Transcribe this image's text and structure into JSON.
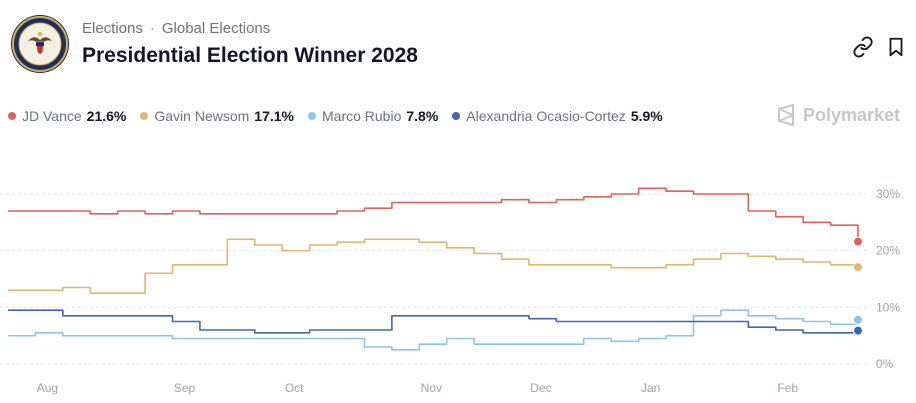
{
  "breadcrumb": {
    "item1": "Elections",
    "separator": "·",
    "item2": "Global Elections"
  },
  "market": {
    "title": "Presidential Election Winner 2028"
  },
  "icons": {
    "seal": "presidential-seal-icon",
    "link": "link-icon",
    "bookmark": "bookmark-icon",
    "brand": "polymarket-logo-icon"
  },
  "brand": {
    "name": "Polymarket"
  },
  "legend": [
    {
      "name": "JD Vance",
      "value": "21.6%",
      "color": "#e0625a"
    },
    {
      "name": "Gavin Newsom",
      "value": "17.1%",
      "color": "#dfb96b"
    },
    {
      "name": "Marco Rubio",
      "value": "7.8%",
      "color": "#8cc4ec"
    },
    {
      "name": "Alexandria Ocasio-Cortez",
      "value": "5.9%",
      "color": "#3e66b4"
    }
  ],
  "chart_data": {
    "type": "line",
    "x": [
      "Jul 25",
      "Aug 1",
      "Aug 8",
      "Aug 15",
      "Aug 22",
      "Aug 29",
      "Sep 5",
      "Sep 12",
      "Sep 19",
      "Sep 26",
      "Oct 3",
      "Oct 10",
      "Oct 17",
      "Oct 24",
      "Oct 31",
      "Nov 7",
      "Nov 14",
      "Nov 21",
      "Nov 28",
      "Dec 5",
      "Dec 12",
      "Dec 19",
      "Dec 26",
      "Jan 2",
      "Jan 9",
      "Jan 16",
      "Jan 23",
      "Jan 30",
      "Feb 6",
      "Feb 13",
      "Feb 20",
      "Feb 27"
    ],
    "series": [
      {
        "name": "JD Vance",
        "color": "#e0625a",
        "values": [
          27,
          27,
          27,
          26.5,
          27,
          26.5,
          27,
          26.5,
          26.5,
          26.5,
          26.5,
          26.5,
          27,
          27.5,
          28.5,
          28.5,
          28.5,
          28.5,
          29,
          28.5,
          29,
          29.5,
          30,
          31,
          30.5,
          30,
          30,
          27,
          26,
          25,
          24.5,
          21.6
        ]
      },
      {
        "name": "Gavin Newsom",
        "color": "#dfb96b",
        "values": [
          13,
          13,
          13.5,
          12.5,
          12.5,
          16,
          17.5,
          17.5,
          22,
          21,
          20,
          21,
          21.5,
          22,
          22,
          21.5,
          20.5,
          19.5,
          18.5,
          17.5,
          17.5,
          17.5,
          17,
          17,
          17.5,
          18.5,
          19.5,
          19,
          18.5,
          18,
          17.5,
          17.1
        ]
      },
      {
        "name": "Marco Rubio",
        "color": "#8cc4ec",
        "values": [
          5,
          5.5,
          5,
          5,
          5,
          5,
          4.5,
          4.5,
          4.5,
          4.5,
          4.5,
          4.5,
          4.5,
          3,
          2.5,
          3.5,
          4.5,
          3.5,
          3.5,
          3.5,
          3.5,
          4.5,
          4,
          4.5,
          5,
          8.5,
          9.5,
          8.5,
          8,
          7.5,
          7,
          7.8
        ]
      },
      {
        "name": "Alexandria Ocasio-Cortez",
        "color": "#3e66b4",
        "values": [
          9.5,
          9.5,
          8.5,
          8.5,
          8.5,
          8.5,
          7.5,
          6,
          6,
          5.5,
          5.5,
          6,
          6,
          6,
          8.5,
          8.5,
          8.5,
          8.5,
          8.5,
          8,
          7.5,
          7.5,
          7.5,
          7.5,
          7.5,
          7.5,
          7.5,
          6.5,
          6,
          5.5,
          5.5,
          5.9
        ]
      }
    ],
    "x_tick_labels": [
      "Aug",
      "Sep",
      "Oct",
      "Nov",
      "Dec",
      "Jan",
      "Feb"
    ],
    "y_tick_labels": [
      "30%",
      "20%",
      "10%",
      "0%"
    ],
    "y_ticks": [
      30,
      20,
      10,
      0
    ],
    "ylim": [
      0,
      35
    ],
    "grid": "horizontal dashed",
    "title": "",
    "xlabel": "",
    "ylabel": ""
  }
}
